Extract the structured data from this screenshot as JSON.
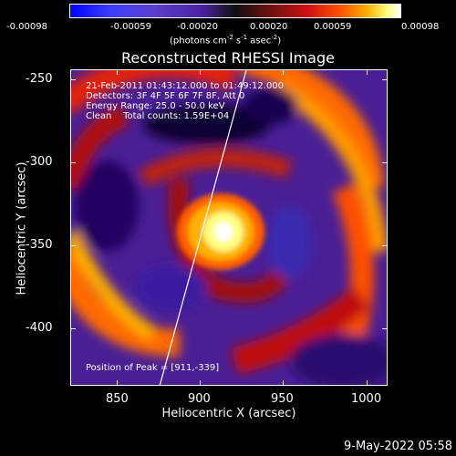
{
  "colorbar": {
    "tick_labels": [
      "-0.00098",
      "-0.00059",
      "-0.00020",
      "0.00020",
      "0.00059",
      "0.00098"
    ],
    "units_prefix": "(photons cm",
    "units_exp1": "-2",
    "units_mid1": " s",
    "units_exp2": "-1",
    "units_mid2": " asec",
    "units_exp3": "-2",
    "units_suffix": ")"
  },
  "plot": {
    "title": "Reconstructed RHESSI Image",
    "xlabel": "Heliocentric X (arcsec)",
    "ylabel": "Heliocentric Y (arcsec)",
    "x_ticks": [
      "850",
      "900",
      "950",
      "1000"
    ],
    "y_ticks": [
      "-250",
      "-300",
      "-350",
      "-400"
    ],
    "info_lines": [
      "21-Feb-2011 01:43:12.000 to 01:49:12.000",
      "Detectors: 3F 4F 5F 6F 7F 8F, Att 0",
      "Energy Range: 25.0 - 50.0 keV",
      "Clean    Total counts: 1.59E+04"
    ],
    "peak_text": "Position of Peak = [911,-339]"
  },
  "footer": {
    "timestamp": "9-May-2022 05:58"
  }
}
